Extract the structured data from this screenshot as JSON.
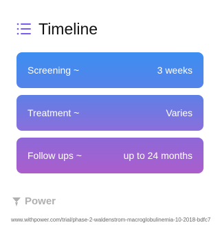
{
  "header": {
    "title": "Timeline"
  },
  "steps": [
    {
      "label": "Screening ~",
      "value": "3 weeks"
    },
    {
      "label": "Treatment ~",
      "value": "Varies"
    },
    {
      "label": "Follow ups ~",
      "value": "up to 24 months"
    }
  ],
  "footer": {
    "brand": "Power",
    "url": "www.withpower.com/trial/phase-2-waldenstrom-macroglobulinemia-10-2018-bdfc7"
  }
}
